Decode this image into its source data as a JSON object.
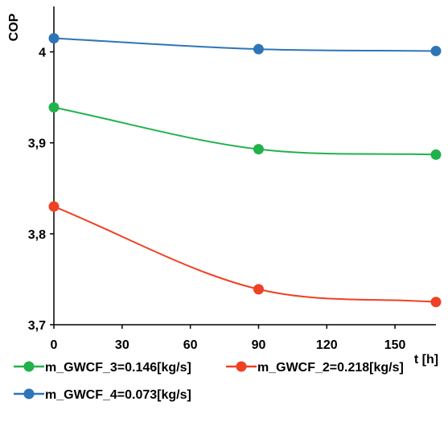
{
  "chart_data": {
    "type": "line",
    "title": "",
    "xlabel": "t [h]",
    "ylabel": "COP",
    "x": [
      0,
      90,
      168
    ],
    "xlim": [
      0,
      168
    ],
    "ylim": [
      3.7,
      4.05
    ],
    "xticks": [
      0,
      30,
      60,
      90,
      120,
      150
    ],
    "xtick_labels": [
      "0",
      "30",
      "60",
      "90",
      "120",
      "150"
    ],
    "yticks": [
      3.7,
      3.8,
      3.9,
      4.0
    ],
    "ytick_labels": [
      "3,7",
      "3,8",
      "3,9",
      "4"
    ],
    "grid": false,
    "legend_position": "bottom",
    "series": [
      {
        "name": "m_GWCF_4=0.073[kg/s]",
        "color": "#2e75b6",
        "values": [
          4.015,
          4.003,
          4.001
        ]
      },
      {
        "name": "m_GWCF_3=0.146[kg/s]",
        "color": "#22b24c",
        "values": [
          3.939,
          3.893,
          3.887
        ]
      },
      {
        "name": "m_GWCF_2=0.218[kg/s]",
        "color": "#ef4123",
        "values": [
          3.83,
          3.739,
          3.725
        ]
      }
    ],
    "legend_order": [
      1,
      2,
      0
    ]
  }
}
